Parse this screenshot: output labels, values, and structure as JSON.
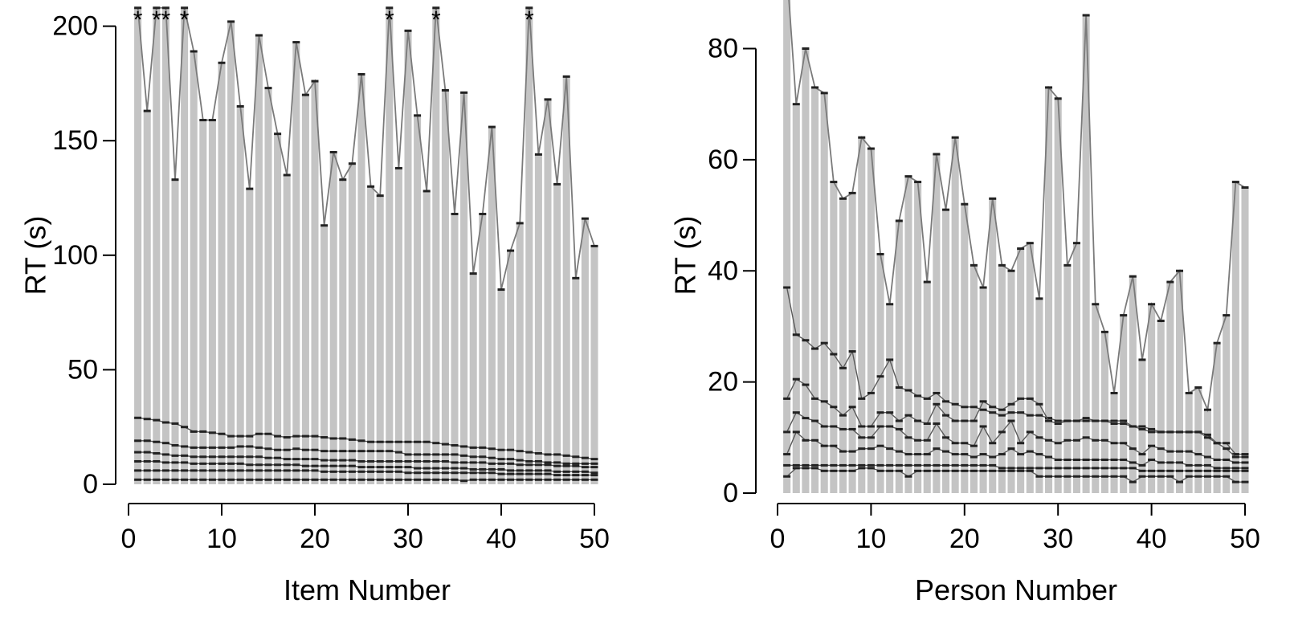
{
  "chart_data": [
    {
      "type": "bar",
      "xlabel": "Item Number",
      "ylabel": "RT (s)",
      "xlim": [
        0,
        50
      ],
      "ylim": [
        0,
        200
      ],
      "xticks": [
        0,
        10,
        20,
        30,
        40,
        50
      ],
      "yticks": [
        0,
        50,
        100,
        150,
        200
      ],
      "x": [
        1,
        2,
        3,
        4,
        5,
        6,
        7,
        8,
        9,
        10,
        11,
        12,
        13,
        14,
        15,
        16,
        17,
        18,
        19,
        20,
        21,
        22,
        23,
        24,
        25,
        26,
        27,
        28,
        29,
        30,
        31,
        32,
        33,
        34,
        35,
        36,
        37,
        38,
        39,
        40,
        41,
        42,
        43,
        44,
        45,
        46,
        47,
        48,
        49,
        50
      ],
      "series": [
        {
          "values": [
            208,
            163,
            208,
            208,
            133,
            208,
            189,
            159,
            159,
            184,
            202,
            165,
            129,
            196,
            173,
            153,
            135,
            193,
            170,
            176,
            113,
            145,
            133,
            140,
            179,
            130,
            126,
            208,
            138,
            198,
            161,
            128,
            208,
            172,
            118,
            171,
            92,
            118,
            156,
            85,
            102,
            114,
            208,
            144,
            168,
            131,
            178,
            90,
            116,
            104
          ]
        },
        {
          "values": [
            29,
            28.5,
            28,
            27,
            26.5,
            25,
            23,
            23,
            22.5,
            22,
            21,
            21,
            21,
            22,
            22,
            21,
            20.5,
            21,
            21,
            21,
            20.5,
            20,
            20,
            19.5,
            19,
            18.5,
            18.5,
            18.5,
            18.5,
            18.5,
            18.5,
            18.5,
            18,
            17.5,
            17,
            16.5,
            16,
            16,
            15.5,
            15,
            15,
            14.5,
            14,
            13.5,
            13,
            13,
            12.5,
            12,
            11.5,
            11
          ]
        },
        {
          "values": [
            19,
            19,
            18.5,
            18,
            17,
            16.5,
            16,
            16,
            16,
            16,
            16,
            16.5,
            16.5,
            16,
            15.5,
            15,
            15,
            15.5,
            15,
            15,
            14.5,
            14.5,
            14.5,
            14.5,
            14.5,
            14.5,
            14.5,
            14.5,
            14,
            13,
            13,
            13,
            13,
            13,
            13,
            12.5,
            12,
            12,
            11.5,
            11,
            11,
            10.5,
            10,
            10,
            9.5,
            9.5,
            9,
            9,
            9,
            9
          ]
        },
        {
          "values": [
            14,
            14,
            13.5,
            13,
            12.5,
            12.5,
            12,
            12,
            12,
            12,
            12,
            12,
            12,
            12,
            11.5,
            11.5,
            11,
            11,
            11,
            11,
            10.5,
            10.5,
            10.5,
            10.5,
            10,
            10,
            10,
            10,
            10,
            10,
            10,
            10,
            10,
            10,
            9.5,
            9.5,
            9.5,
            9.5,
            9,
            9,
            9,
            8.5,
            8.5,
            8.5,
            8.5,
            8,
            8,
            8,
            7.5,
            7.5
          ]
        },
        {
          "values": [
            10,
            10,
            10,
            9.5,
            9.5,
            9.5,
            9,
            9,
            9,
            9,
            9,
            9,
            8.5,
            8.5,
            8.5,
            8.5,
            8.5,
            8.5,
            8,
            8,
            8,
            8,
            8,
            8,
            7.5,
            7.5,
            7.5,
            7.5,
            7.5,
            7.5,
            7,
            7,
            7,
            7,
            7,
            7,
            6.5,
            6.5,
            6.5,
            6.5,
            6,
            6,
            6,
            6,
            6,
            5.5,
            5.5,
            5.5,
            5.5,
            5
          ]
        },
        {
          "values": [
            6,
            6,
            6,
            6,
            6,
            6,
            6,
            6,
            6,
            6,
            6,
            6,
            6,
            6,
            6,
            6,
            6,
            6,
            6,
            6,
            5.5,
            5.5,
            5.5,
            5.5,
            5.5,
            5.5,
            5.5,
            5.5,
            5.5,
            5,
            5,
            5,
            5,
            5,
            5,
            5,
            5,
            5,
            5,
            4.5,
            4.5,
            4.5,
            4.5,
            4.5,
            4.5,
            4,
            4,
            4,
            4,
            4
          ]
        },
        {
          "values": [
            2,
            2,
            2,
            2,
            2,
            2,
            2,
            2,
            2,
            2,
            2,
            2,
            2,
            2,
            2,
            2,
            2,
            2,
            2,
            2,
            2,
            2,
            2,
            2,
            2,
            2,
            2,
            2,
            2,
            2,
            2,
            2,
            2,
            2,
            2,
            1.5,
            2,
            2,
            2,
            2,
            2,
            2,
            2,
            2,
            2,
            2,
            2,
            2,
            2,
            2
          ]
        }
      ],
      "starred_x": [
        1,
        3,
        4,
        6,
        28,
        33,
        43
      ],
      "star_symbol": "*"
    },
    {
      "type": "bar",
      "xlabel": "Person Number",
      "ylabel": "RT (s)",
      "xlim": [
        0,
        50
      ],
      "ylim": [
        0,
        90
      ],
      "xticks": [
        0,
        10,
        20,
        30,
        40,
        50
      ],
      "yticks": [
        0,
        20,
        40,
        60,
        80
      ],
      "x": [
        1,
        2,
        3,
        4,
        5,
        6,
        7,
        8,
        9,
        10,
        11,
        12,
        13,
        14,
        15,
        16,
        17,
        18,
        19,
        20,
        21,
        22,
        23,
        24,
        25,
        26,
        27,
        28,
        29,
        30,
        31,
        32,
        33,
        34,
        35,
        36,
        37,
        38,
        39,
        40,
        41,
        42,
        43,
        44,
        45,
        46,
        47,
        48,
        49,
        50
      ],
      "series": [
        {
          "values": [
            94,
            70,
            80,
            73,
            72,
            56,
            53,
            54,
            64,
            62,
            43,
            34,
            49,
            57,
            56,
            38,
            61,
            51,
            64,
            52,
            41,
            37,
            53,
            41,
            40,
            44,
            45,
            35,
            73,
            71,
            41,
            45,
            86,
            34,
            29,
            18,
            32,
            39,
            24,
            34,
            31,
            38,
            40,
            18,
            19,
            15,
            27,
            32,
            56,
            55
          ]
        },
        {
          "values": [
            37,
            28.5,
            27.5,
            26,
            27,
            25,
            22.5,
            25.5,
            17,
            18,
            21,
            24,
            19,
            18.5,
            17.5,
            17,
            18,
            16.5,
            16,
            15.5,
            15.5,
            15,
            14.5,
            14,
            14.5,
            14.5,
            14,
            14,
            13.5,
            13,
            13,
            13,
            13.5,
            13,
            13,
            12.5,
            12.5,
            12,
            12,
            11.5,
            11,
            11,
            11,
            11,
            11,
            10.5,
            9,
            9,
            7,
            7
          ]
        },
        {
          "values": [
            17,
            20.5,
            19.5,
            17,
            16.5,
            15.5,
            14,
            15.5,
            12,
            12,
            14.5,
            14.5,
            13,
            14,
            13,
            12.5,
            16,
            14,
            13,
            13,
            13,
            16.5,
            15.5,
            15,
            16,
            17,
            17,
            16,
            13,
            12.5,
            13,
            13,
            13,
            13,
            13,
            13,
            13,
            12,
            11.5,
            11,
            11,
            11,
            11,
            11,
            11,
            10,
            9,
            8,
            6.5,
            6.5
          ]
        },
        {
          "values": [
            11,
            14.5,
            13.5,
            13,
            12,
            12,
            11.5,
            11.5,
            10,
            10,
            12,
            12,
            11.5,
            10,
            9.5,
            9.5,
            12.5,
            10,
            9,
            9,
            8.5,
            12,
            9,
            11,
            13,
            9,
            11,
            10,
            9.5,
            9,
            9.5,
            9.5,
            10,
            9.5,
            9.5,
            9,
            9,
            8,
            7,
            8.5,
            8,
            7.5,
            7.5,
            7.5,
            7,
            6.5,
            6,
            6,
            5.5,
            5.5
          ]
        },
        {
          "values": [
            7,
            11,
            9.5,
            9.5,
            8.5,
            8.5,
            7.5,
            7.5,
            8,
            8,
            8.5,
            8,
            7.5,
            7,
            7,
            7,
            8,
            7.5,
            7,
            7,
            6.5,
            7,
            6.5,
            7,
            8,
            7,
            7.5,
            7,
            6.5,
            6,
            6,
            6,
            6,
            6,
            6,
            6,
            6,
            5.5,
            5,
            6,
            5.5,
            5.5,
            5.5,
            5,
            5,
            5,
            4.5,
            4.5,
            4.5,
            4.5
          ]
        },
        {
          "values": [
            5,
            5,
            5,
            5,
            5,
            5,
            5,
            5,
            5,
            5,
            5,
            5,
            5,
            5,
            5,
            5,
            5,
            5,
            5,
            5,
            5,
            5,
            5,
            4.5,
            4.5,
            4.5,
            4.5,
            4.5,
            4.5,
            4.5,
            4.5,
            4.5,
            4.5,
            4.5,
            4.5,
            4.5,
            4.5,
            4.5,
            4,
            4,
            4,
            4,
            4,
            4,
            4,
            4,
            4,
            4,
            4,
            4
          ]
        },
        {
          "values": [
            3,
            4.5,
            4.5,
            4.5,
            4,
            4,
            4,
            4,
            4.5,
            4.5,
            4,
            4,
            4,
            3,
            4,
            4,
            4,
            4,
            4,
            4,
            4,
            4,
            4,
            4,
            4,
            4,
            4,
            3,
            3,
            3,
            3,
            3,
            3,
            3,
            3,
            3,
            3,
            2,
            3,
            3,
            3,
            3,
            2,
            3,
            3,
            3,
            3,
            3,
            2,
            2
          ]
        }
      ]
    }
  ]
}
